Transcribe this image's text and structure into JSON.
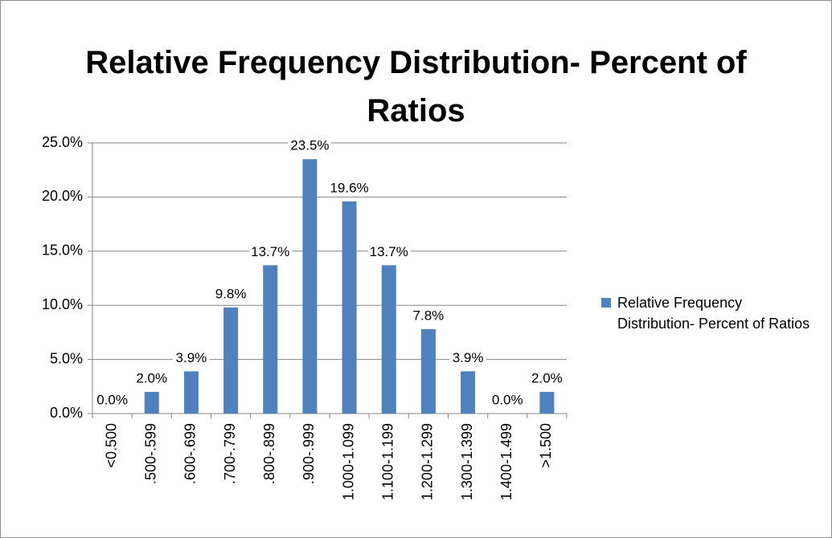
{
  "chart_data": {
    "type": "bar",
    "title": "Relative Frequency Distribution- Percent of Ratios",
    "categories": [
      "<0.500",
      ".500-.599",
      ".600-.699",
      ".700-.799",
      ".800-.899",
      ".900-.999",
      "1.000-1.099",
      "1.100-1.199",
      "1.200-1.299",
      "1.300-1.399",
      "1.400-1.499",
      ">1.500"
    ],
    "series": [
      {
        "name": "Relative Frequency Distribution- Percent of Ratios",
        "color": "#4f81bd",
        "values": [
          0,
          2,
          3.9,
          9.8,
          13.7,
          23.5,
          19.6,
          13.7,
          7.8,
          3.9,
          0,
          2
        ],
        "value_labels": [
          "0.0%",
          "2.0%",
          "3.9%",
          "9.8%",
          "13.7%",
          "23.5%",
          "19.6%",
          "13.7%",
          "7.8%",
          "3.9%",
          "0.0%",
          "2.0%"
        ]
      }
    ],
    "ylim": [
      0,
      25
    ],
    "yticks": [
      {
        "value": 0,
        "label": "0.0%"
      },
      {
        "value": 5,
        "label": "5.0%"
      },
      {
        "value": 10,
        "label": "10.0%"
      },
      {
        "value": 15,
        "label": "15.0%"
      },
      {
        "value": 20,
        "label": "20.0%"
      },
      {
        "value": 25,
        "label": "25.0%"
      }
    ],
    "grid": true,
    "legend": "right"
  }
}
